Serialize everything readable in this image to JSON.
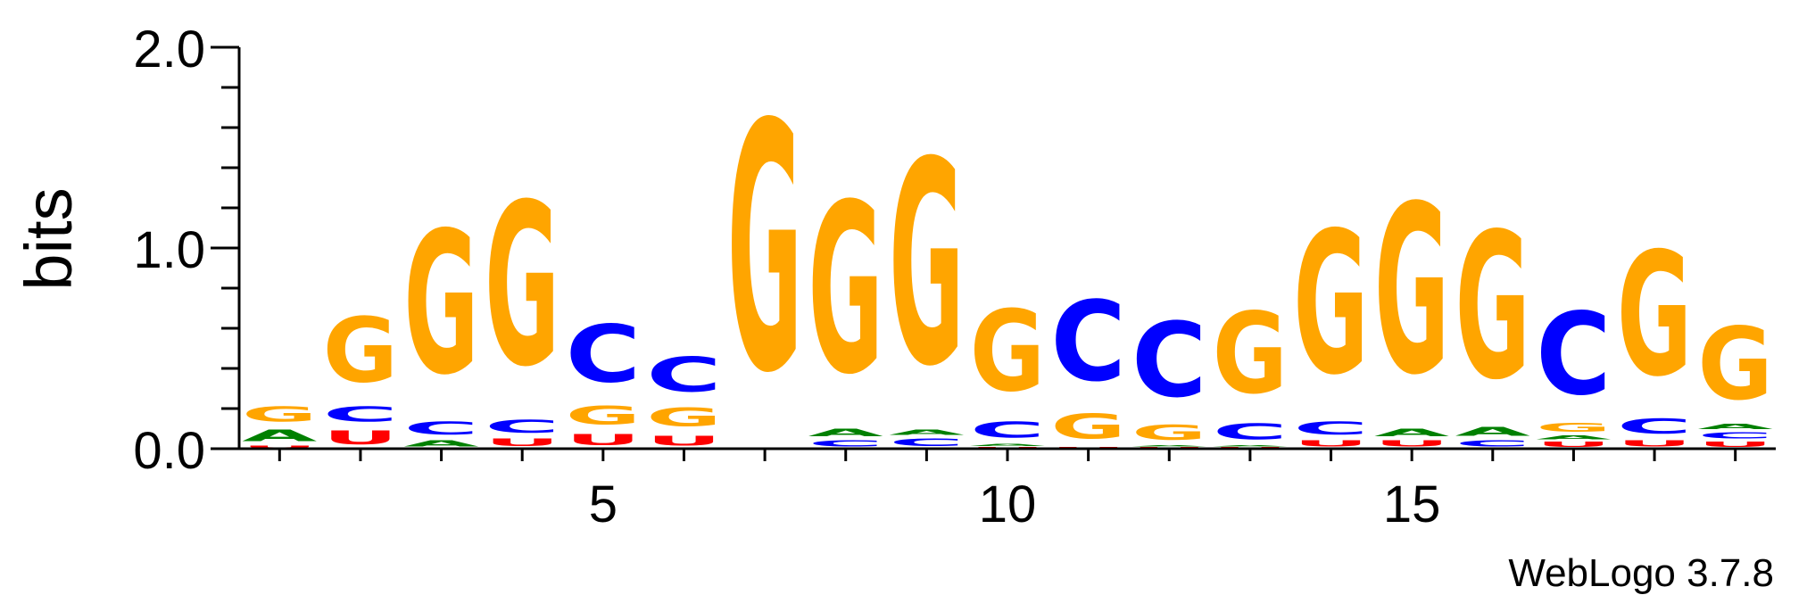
{
  "chart_data": {
    "type": "sequence-logo",
    "ylabel": "bits",
    "ylim": [
      0,
      2.0
    ],
    "y_ticks": [
      {
        "value": 0.0,
        "label": "0.0"
      },
      {
        "value": 1.0,
        "label": "1.0"
      },
      {
        "value": 2.0,
        "label": "2.0"
      }
    ],
    "x_range": [
      1,
      19
    ],
    "x_ticks": [
      {
        "position": 5,
        "label": "5"
      },
      {
        "position": 10,
        "label": "10"
      },
      {
        "position": 15,
        "label": "15"
      }
    ],
    "credit": "WebLogo 3.7.8",
    "colors": {
      "A": "#008000",
      "C": "#0000ff",
      "G": "#ffa500",
      "U": "#ff0000"
    },
    "positions": [
      {
        "position": 1,
        "stack": [
          {
            "letter": "U",
            "bits": 0.02
          },
          {
            "letter": "A",
            "bits": 0.09
          },
          {
            "letter": "G",
            "bits": 0.12
          }
        ]
      },
      {
        "position": 2,
        "stack": [
          {
            "letter": "U",
            "bits": 0.11
          },
          {
            "letter": "C",
            "bits": 0.12
          },
          {
            "letter": "G",
            "bits": 0.52
          }
        ]
      },
      {
        "position": 3,
        "stack": [
          {
            "letter": "A",
            "bits": 0.05
          },
          {
            "letter": "C",
            "bits": 0.1
          },
          {
            "letter": "G",
            "bits": 1.14
          }
        ]
      },
      {
        "position": 4,
        "stack": [
          {
            "letter": "U",
            "bits": 0.06
          },
          {
            "letter": "C",
            "bits": 0.1
          },
          {
            "letter": "G",
            "bits": 1.3
          }
        ]
      },
      {
        "position": 5,
        "stack": [
          {
            "letter": "U",
            "bits": 0.09
          },
          {
            "letter": "G",
            "bits": 0.15
          },
          {
            "letter": "C",
            "bits": 0.46
          }
        ]
      },
      {
        "position": 6,
        "stack": [
          {
            "letter": "U",
            "bits": 0.08
          },
          {
            "letter": "G",
            "bits": 0.15
          },
          {
            "letter": "C",
            "bits": 0.28
          }
        ]
      },
      {
        "position": 7,
        "stack": [
          {
            "letter": "G",
            "bits": 1.98
          }
        ]
      },
      {
        "position": 8,
        "stack": [
          {
            "letter": "C",
            "bits": 0.05
          },
          {
            "letter": "A",
            "bits": 0.06
          },
          {
            "letter": "G",
            "bits": 1.36
          }
        ]
      },
      {
        "position": 9,
        "stack": [
          {
            "letter": "C",
            "bits": 0.06
          },
          {
            "letter": "A",
            "bits": 0.04
          },
          {
            "letter": "G",
            "bits": 1.63
          }
        ]
      },
      {
        "position": 10,
        "stack": [
          {
            "letter": "U",
            "bits": 0.01
          },
          {
            "letter": "A",
            "bits": 0.02
          },
          {
            "letter": "C",
            "bits": 0.13
          },
          {
            "letter": "G",
            "bits": 0.65
          }
        ]
      },
      {
        "position": 11,
        "stack": [
          {
            "letter": "U",
            "bits": 0.01
          },
          {
            "letter": "G",
            "bits": 0.2
          },
          {
            "letter": "C",
            "bits": 0.64
          }
        ]
      },
      {
        "position": 12,
        "stack": [
          {
            "letter": "U",
            "bits": 0.01
          },
          {
            "letter": "A",
            "bits": 0.01
          },
          {
            "letter": "G",
            "bits": 0.12
          },
          {
            "letter": "C",
            "bits": 0.6
          }
        ]
      },
      {
        "position": 13,
        "stack": [
          {
            "letter": "U",
            "bits": 0.01
          },
          {
            "letter": "A",
            "bits": 0.01
          },
          {
            "letter": "C",
            "bits": 0.13
          },
          {
            "letter": "G",
            "bits": 0.65
          }
        ]
      },
      {
        "position": 14,
        "stack": [
          {
            "letter": "U",
            "bits": 0.05
          },
          {
            "letter": "C",
            "bits": 0.1
          },
          {
            "letter": "G",
            "bits": 1.14
          }
        ]
      },
      {
        "position": 15,
        "stack": [
          {
            "letter": "U",
            "bits": 0.05
          },
          {
            "letter": "A",
            "bits": 0.06
          },
          {
            "letter": "G",
            "bits": 1.35
          }
        ]
      },
      {
        "position": 16,
        "stack": [
          {
            "letter": "C",
            "bits": 0.05
          },
          {
            "letter": "A",
            "bits": 0.07
          },
          {
            "letter": "G",
            "bits": 1.17
          }
        ]
      },
      {
        "position": 17,
        "stack": [
          {
            "letter": "U",
            "bits": 0.04
          },
          {
            "letter": "A",
            "bits": 0.03
          },
          {
            "letter": "G",
            "bits": 0.07
          },
          {
            "letter": "C",
            "bits": 0.66
          }
        ]
      },
      {
        "position": 18,
        "stack": [
          {
            "letter": "U",
            "bits": 0.05
          },
          {
            "letter": "C",
            "bits": 0.12
          },
          {
            "letter": "G",
            "bits": 0.99
          }
        ]
      },
      {
        "position": 19,
        "stack": [
          {
            "letter": "U",
            "bits": 0.04
          },
          {
            "letter": "C",
            "bits": 0.05
          },
          {
            "letter": "A",
            "bits": 0.04
          },
          {
            "letter": "G",
            "bits": 0.58
          }
        ]
      }
    ]
  }
}
